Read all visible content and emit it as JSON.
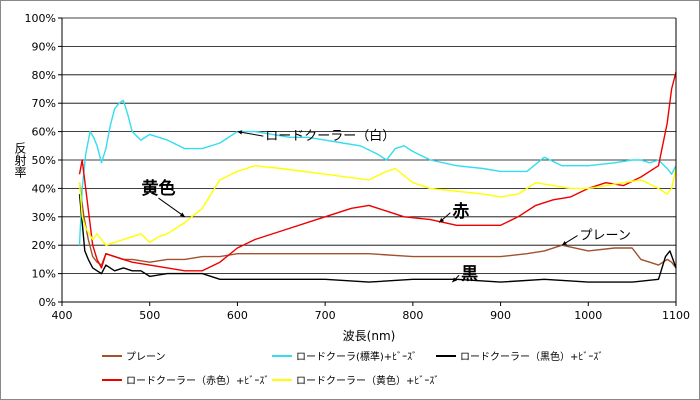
{
  "chart_data": {
    "type": "line",
    "xlabel": "波長(nm)",
    "ylabel": "反射率",
    "xlim": [
      400,
      1100
    ],
    "ylim": [
      0,
      100
    ],
    "x_ticks": [
      "400",
      "500",
      "600",
      "700",
      "800",
      "900",
      "1000",
      "1100"
    ],
    "y_ticks": [
      "0%",
      "10%",
      "20%",
      "30%",
      "40%",
      "50%",
      "60%",
      "70%",
      "80%",
      "90%",
      "100%"
    ],
    "grid": "horizontal",
    "legend_position": "bottom",
    "annotations": [
      {
        "text": "ロードクーラー（白）",
        "x": 780,
        "y": 57,
        "style": "normal",
        "anchor": "end",
        "arrow_to": [
          600,
          60
        ]
      },
      {
        "text": "黄色",
        "x": 510,
        "y": 38,
        "style": "bold",
        "anchor": "middle",
        "arrow_to": [
          540,
          30
        ]
      },
      {
        "text": "赤",
        "x": 845,
        "y": 30,
        "style": "bold",
        "anchor": "start",
        "arrow_to": [
          830,
          28
        ]
      },
      {
        "text": "プレーン",
        "x": 990,
        "y": 22,
        "style": "normal",
        "anchor": "start",
        "arrow_to": [
          970,
          20
        ]
      },
      {
        "text": "黒",
        "x": 855,
        "y": 8,
        "style": "bold",
        "anchor": "start",
        "arrow_to": [
          845,
          7
        ]
      }
    ],
    "series": [
      {
        "name": "プレーン",
        "color": "#A0522D",
        "x": [
          420,
          425,
          430,
          435,
          440,
          445,
          450,
          460,
          470,
          480,
          500,
          520,
          540,
          560,
          580,
          600,
          650,
          700,
          750,
          800,
          850,
          900,
          930,
          950,
          970,
          1000,
          1030,
          1050,
          1060,
          1070,
          1080,
          1090,
          1095,
          1100
        ],
        "y": [
          42,
          30,
          22,
          16,
          14,
          13,
          17,
          16,
          15,
          15,
          14,
          15,
          15,
          16,
          16,
          17,
          17,
          17,
          17,
          16,
          16,
          16,
          17,
          18,
          20,
          18,
          19,
          19,
          15,
          14,
          13,
          15,
          14,
          12
        ]
      },
      {
        "name": "ロードクーラ(標準)+ﾋﾞｰｽﾞ",
        "color": "#33DDEE",
        "x": [
          420,
          423,
          427,
          432,
          436,
          440,
          445,
          450,
          455,
          460,
          465,
          470,
          475,
          480,
          490,
          500,
          520,
          540,
          560,
          580,
          600,
          620,
          640,
          660,
          680,
          700,
          720,
          740,
          760,
          770,
          780,
          790,
          800,
          820,
          850,
          880,
          900,
          930,
          950,
          970,
          1000,
          1030,
          1050,
          1060,
          1070,
          1080,
          1090,
          1095,
          1100
        ],
        "y": [
          20,
          40,
          52,
          60,
          58,
          55,
          49,
          54,
          62,
          68,
          70,
          71,
          66,
          60,
          57,
          59,
          57,
          54,
          54,
          56,
          60,
          60,
          59,
          58,
          58,
          57,
          56,
          55,
          52,
          50,
          54,
          55,
          53,
          50,
          48,
          47,
          46,
          46,
          51,
          48,
          48,
          49,
          50,
          50,
          49,
          50,
          47,
          45,
          48
        ]
      },
      {
        "name": "ロードクーラー（黒色）+ﾋﾞｰｽﾞ",
        "color": "#000000",
        "x": [
          420,
          423,
          426,
          430,
          435,
          440,
          445,
          450,
          460,
          470,
          480,
          490,
          500,
          520,
          540,
          560,
          580,
          600,
          650,
          700,
          750,
          800,
          850,
          900,
          950,
          1000,
          1050,
          1080,
          1088,
          1093,
          1100
        ],
        "y": [
          38,
          28,
          18,
          15,
          12,
          11,
          10,
          13,
          11,
          12,
          11,
          11,
          9,
          10,
          10,
          10,
          8,
          8,
          8,
          8,
          7,
          8,
          8,
          7,
          8,
          7,
          7,
          8,
          16,
          18,
          12
        ]
      },
      {
        "name": "ロードクーラー（赤色）+ﾋﾞｰｽﾞ",
        "color": "#EE0000",
        "x": [
          420,
          423,
          427,
          431,
          435,
          440,
          445,
          450,
          460,
          470,
          480,
          500,
          520,
          540,
          560,
          580,
          600,
          620,
          650,
          700,
          730,
          750,
          770,
          790,
          820,
          850,
          880,
          900,
          920,
          940,
          960,
          980,
          1000,
          1020,
          1040,
          1060,
          1080,
          1090,
          1095,
          1100
        ],
        "y": [
          45,
          50,
          40,
          30,
          20,
          15,
          12,
          17,
          16,
          15,
          14,
          13,
          12,
          11,
          11,
          14,
          19,
          22,
          25,
          30,
          33,
          34,
          32,
          30,
          29,
          27,
          27,
          27,
          30,
          34,
          36,
          37,
          40,
          42,
          41,
          44,
          48,
          63,
          75,
          81
        ]
      },
      {
        "name": "ロードクーラー（黄色）+ﾋﾞｰｽﾞ",
        "color": "#FFFF00",
        "x": [
          420,
          423,
          427,
          431,
          435,
          440,
          445,
          450,
          460,
          470,
          480,
          490,
          500,
          510,
          520,
          540,
          560,
          580,
          600,
          620,
          650,
          700,
          750,
          770,
          780,
          800,
          820,
          850,
          880,
          900,
          920,
          940,
          960,
          980,
          1000,
          1020,
          1040,
          1060,
          1080,
          1090,
          1095,
          1100
        ],
        "y": [
          42,
          30,
          26,
          24,
          22,
          24,
          22,
          20,
          21,
          22,
          23,
          24,
          21,
          23,
          24,
          28,
          33,
          43,
          46,
          48,
          47,
          45,
          43,
          46,
          47,
          42,
          40,
          39,
          38,
          37,
          38,
          42,
          41,
          40,
          40,
          41,
          42,
          43,
          40,
          38,
          40,
          47
        ]
      }
    ]
  }
}
